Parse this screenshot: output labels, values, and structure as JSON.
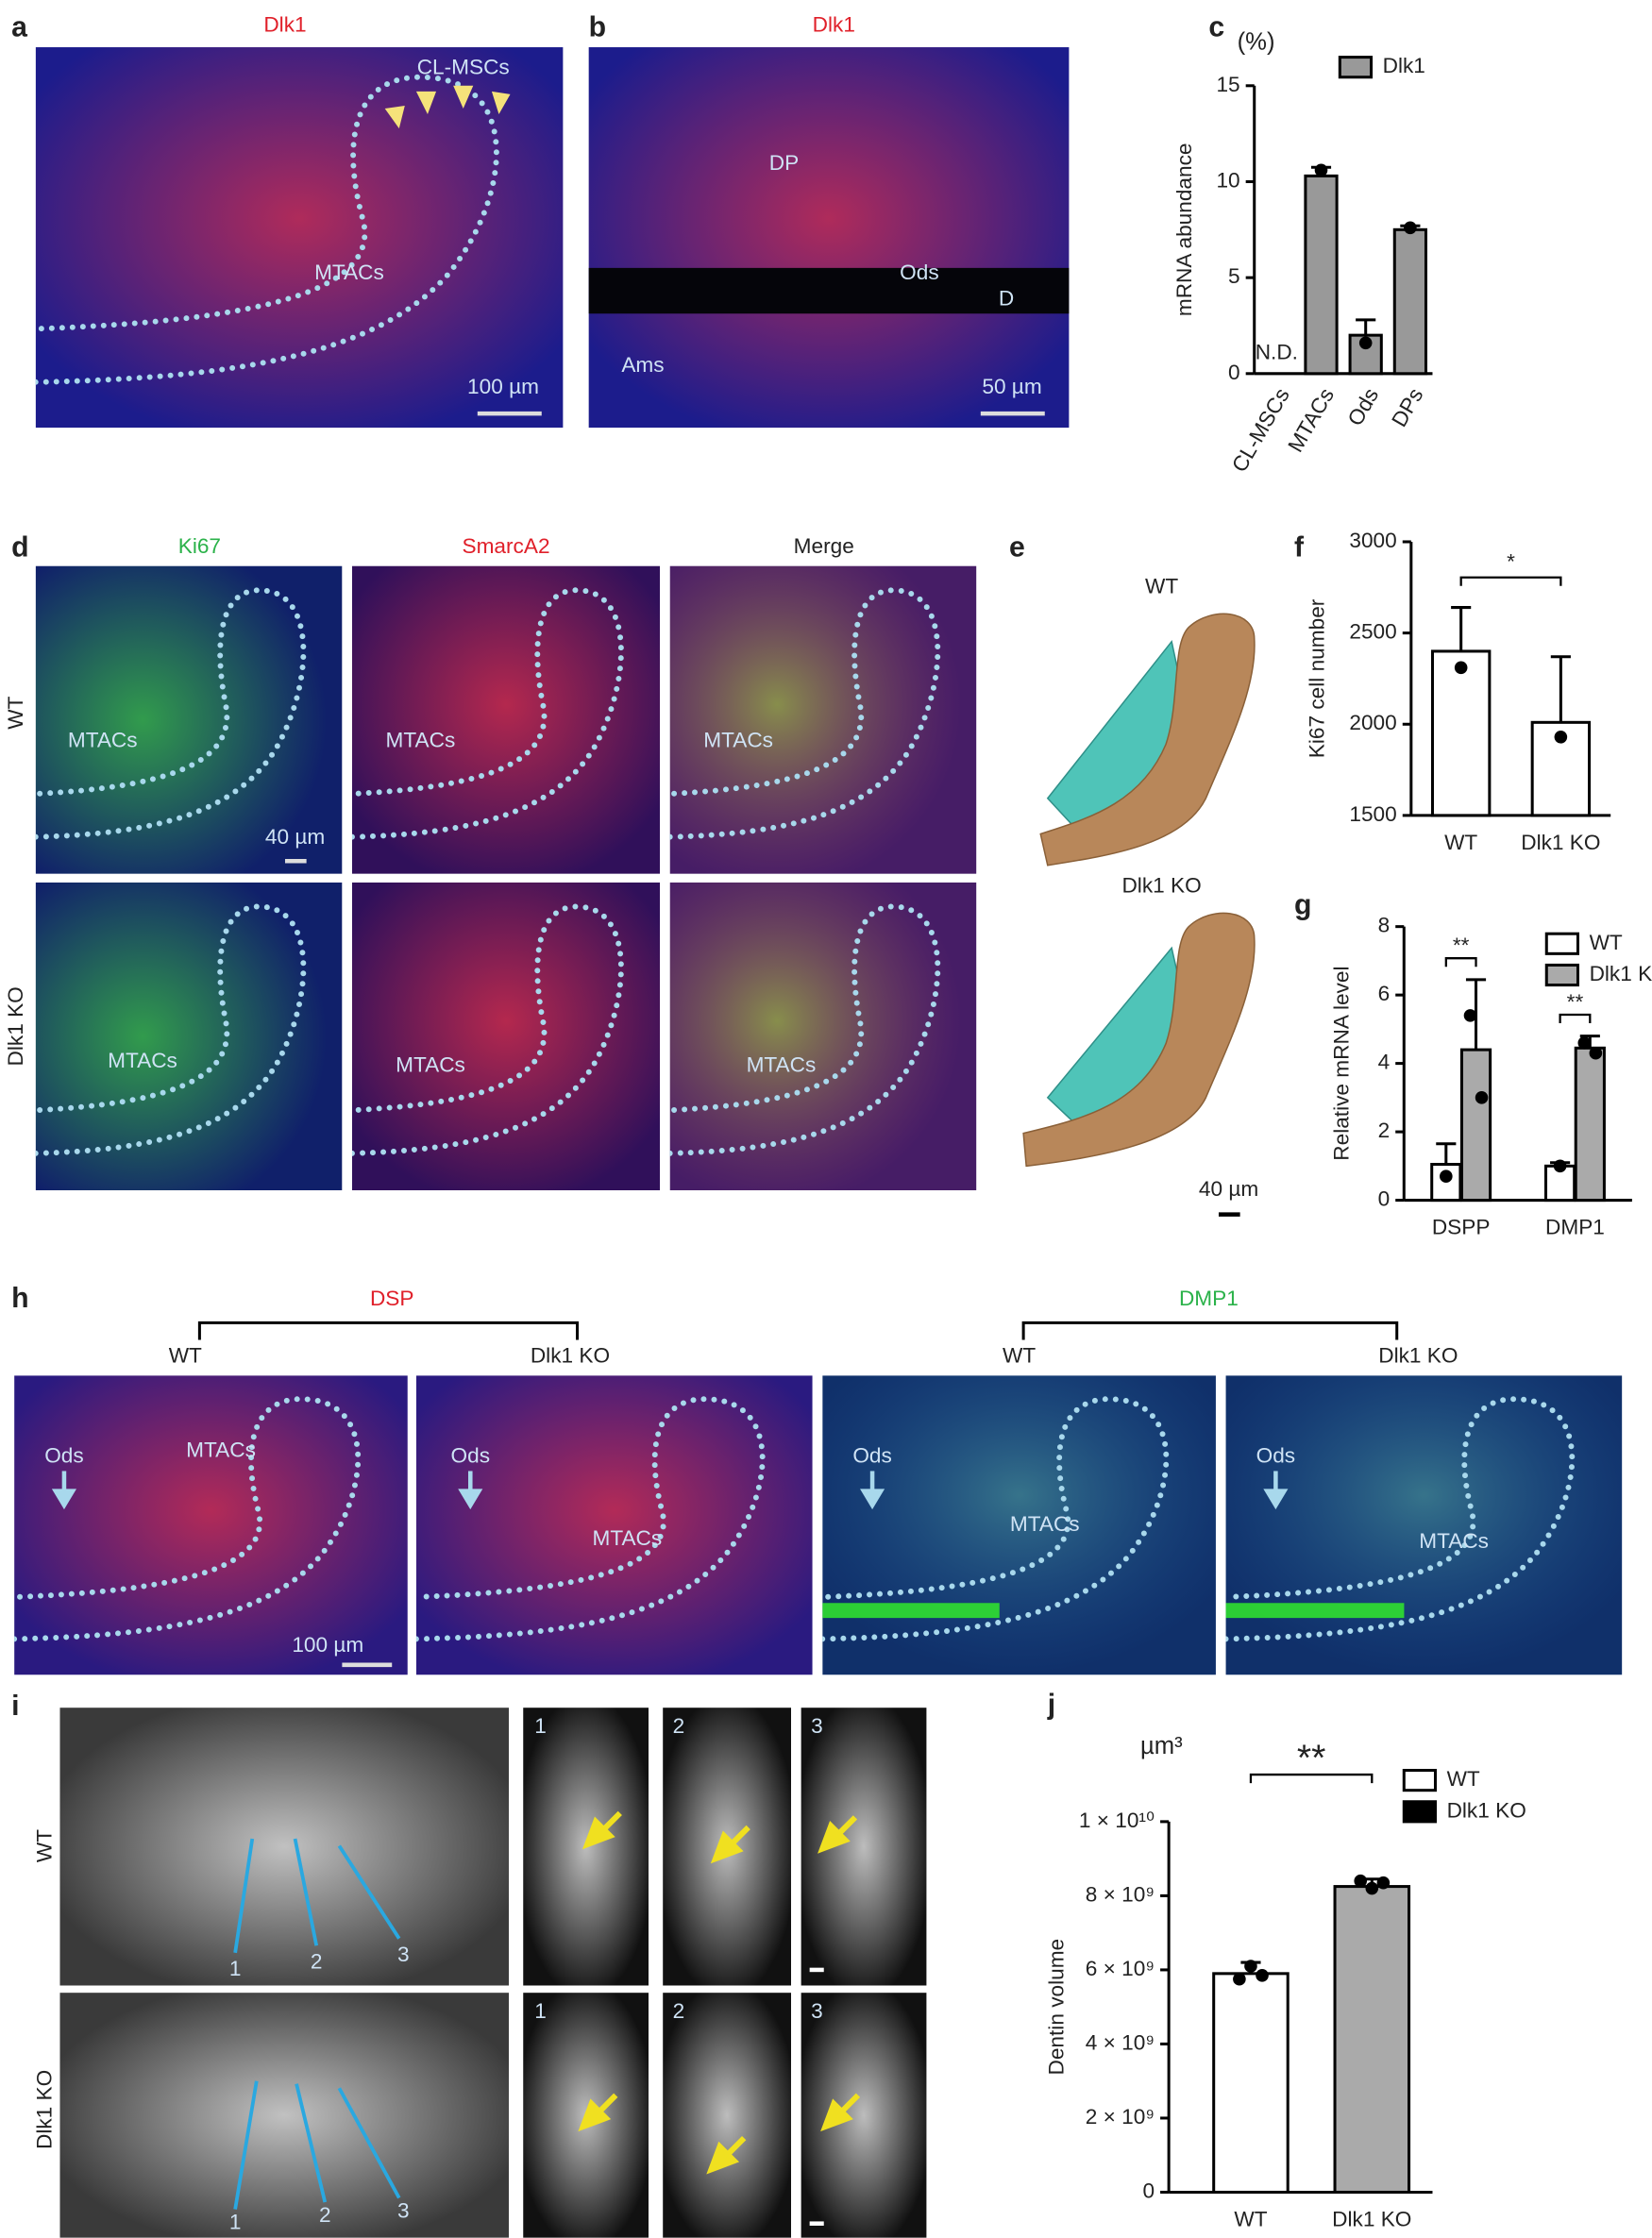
{
  "panels": {
    "a": {
      "letter": "a",
      "title": "Dlk1",
      "labels": [
        "CL-MSCs",
        "MTACs"
      ],
      "scale_bar": "100 µm"
    },
    "b": {
      "letter": "b",
      "title": "Dlk1",
      "labels": [
        "DP",
        "Ods",
        "D",
        "Ams"
      ],
      "scale_bar": "50 µm"
    },
    "d": {
      "letter": "d",
      "columns": [
        "Ki67",
        "SmarcA2",
        "Merge"
      ],
      "rows": [
        "WT",
        "Dlk1 KO"
      ],
      "image_label": "MTACs",
      "scale_bar": "40 µm"
    },
    "e": {
      "letter": "e",
      "rows": [
        "WT",
        "Dlk1 KO"
      ],
      "scale_bar": "40 µm"
    },
    "h": {
      "letter": "h",
      "groups": [
        {
          "title": "DSP",
          "conditions": [
            "WT",
            "Dlk1 KO"
          ]
        },
        {
          "title": "DMP1",
          "conditions": [
            "WT",
            "Dlk1 KO"
          ]
        }
      ],
      "labels": [
        "MTACs",
        "Ods"
      ],
      "scale_bar": "100 µm"
    },
    "i": {
      "letter": "i",
      "rows": [
        "WT",
        "Dlk1 KO"
      ],
      "section_numbers": [
        "1",
        "2",
        "3"
      ]
    }
  },
  "chart_data": [
    {
      "type": "bar",
      "panel_label": "c",
      "unit": "(%)",
      "y_label": "mRNA abundance",
      "categories": [
        "CL-MSCs",
        "MTACs",
        "Ods",
        "DPs"
      ],
      "annotation": "N.D.",
      "series": [
        {
          "name": "Dlk1",
          "color": "#999999",
          "values": [
            null,
            10.3,
            2.0,
            7.5
          ],
          "errors": [
            null,
            0.45,
            0.8,
            0.2
          ],
          "points": [
            [],
            [
              10.6
            ],
            [
              1.6
            ],
            [
              7.6
            ]
          ]
        }
      ],
      "ylim": [
        0,
        15
      ],
      "yticks": [
        0,
        5,
        10,
        15
      ]
    },
    {
      "type": "bar",
      "panel_label": "f",
      "y_label": "Ki67 cell number",
      "categories": [
        "WT",
        "Dlk1 KO"
      ],
      "color": "#ffffff",
      "values": [
        2400,
        2010
      ],
      "errors": [
        240,
        360
      ],
      "points": [
        [
          2310
        ],
        [
          1930
        ]
      ],
      "significance": "*",
      "ylim": [
        1500,
        3000
      ],
      "yticks": [
        1500,
        2000,
        2500,
        3000
      ]
    },
    {
      "type": "bar",
      "panel_label": "g",
      "y_label": "Relative mRNA level",
      "categories": [
        "DSPP",
        "DMP1"
      ],
      "series": [
        {
          "name": "WT",
          "color": "#ffffff",
          "values": [
            1.05,
            1.0
          ],
          "errors": [
            0.6,
            0.1
          ],
          "points": [
            [
              0.7
            ],
            [
              1.0
            ]
          ]
        },
        {
          "name": "Dlk1 KO",
          "color": "#aaaaaa",
          "values": [
            4.4,
            4.45
          ],
          "errors": [
            2.05,
            0.35
          ],
          "points": [
            [
              5.4,
              3.0
            ],
            [
              4.6,
              4.3
            ]
          ]
        }
      ],
      "significance": [
        "**",
        "**"
      ],
      "ylim": [
        0,
        8
      ],
      "yticks": [
        0,
        2,
        4,
        6,
        8
      ]
    },
    {
      "type": "bar",
      "panel_label": "j",
      "unit": "µm³",
      "y_label": "Dentin volume",
      "categories": [
        "WT",
        "Dlk1 KO"
      ],
      "values": [
        5900000000,
        8250000000
      ],
      "colors": [
        "#ffffff",
        "#aaaaaa"
      ],
      "errors": [
        300000000,
        200000000
      ],
      "points": [
        [
          5750000000,
          6100000000,
          5850000000
        ],
        [
          8400000000,
          8200000000,
          8350000000
        ]
      ],
      "legend": [
        {
          "name": "WT",
          "color": "#ffffff"
        },
        {
          "name": "Dlk1 KO",
          "color": "#000000"
        }
      ],
      "significance": "**",
      "ylim": [
        0,
        10000000000
      ],
      "yticks": [
        0,
        {
          "value": 2000000000,
          "label": "2 × 10⁹"
        },
        {
          "value": 4000000000,
          "label": "4 × 10⁹"
        },
        {
          "value": 6000000000,
          "label": "6 × 10⁹"
        },
        {
          "value": 8000000000,
          "label": "8 × 10⁹"
        },
        {
          "value": 10000000000,
          "label": "1 × 10¹⁰"
        }
      ]
    }
  ]
}
